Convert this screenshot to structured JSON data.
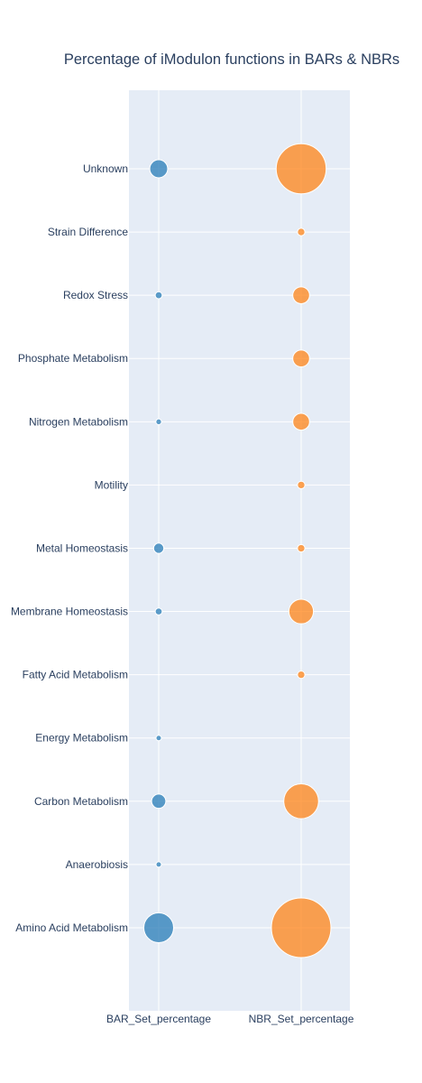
{
  "chart_data": {
    "type": "scatter",
    "title": "Percentage of iModulon functions in BARs & NBRs",
    "xlabel": "",
    "ylabel": "",
    "x_categories": [
      "BAR_Set_percentage",
      "NBR_Set_percentage"
    ],
    "y_categories": [
      "Unknown",
      "Strain Difference",
      "Redox Stress",
      "Phosphate Metabolism",
      "Nitrogen Metabolism",
      "Motility",
      "Metal Homeostasis",
      "Membrane Homeostasis",
      "Fatty Acid Metabolism",
      "Energy Metabolism",
      "Carbon Metabolism",
      "Anaerobiosis",
      "Amino Acid Metabolism"
    ],
    "series": [
      {
        "color": "#1f77b4",
        "points": [
          {
            "y": "Unknown",
            "size": 4
          },
          {
            "y": "Redox Stress",
            "size": 0.6
          },
          {
            "y": "Nitrogen Metabolism",
            "size": 0.4
          },
          {
            "y": "Metal Homeostasis",
            "size": 1.3
          },
          {
            "y": "Membrane Homeostasis",
            "size": 0.6
          },
          {
            "y": "Energy Metabolism",
            "size": 0.3
          },
          {
            "y": "Carbon Metabolism",
            "size": 2.5
          },
          {
            "y": "Anaerobiosis",
            "size": 0.3
          },
          {
            "y": "Amino Acid Metabolism",
            "size": 11
          }
        ]
      },
      {
        "color": "#ff7f0e",
        "points": [
          {
            "y": "Unknown",
            "size": 31
          },
          {
            "y": "Strain Difference",
            "size": 0.7
          },
          {
            "y": "Redox Stress",
            "size": 3.5
          },
          {
            "y": "Phosphate Metabolism",
            "size": 3.5
          },
          {
            "y": "Nitrogen Metabolism",
            "size": 3.5
          },
          {
            "y": "Motility",
            "size": 0.7
          },
          {
            "y": "Metal Homeostasis",
            "size": 0.7
          },
          {
            "y": "Membrane Homeostasis",
            "size": 7.5
          },
          {
            "y": "Fatty Acid Metabolism",
            "size": 0.7
          },
          {
            "y": "Carbon Metabolism",
            "size": 15
          },
          {
            "y": "Amino Acid Metabolism",
            "size": 44
          }
        ]
      }
    ],
    "grid": true,
    "legend": "none"
  }
}
